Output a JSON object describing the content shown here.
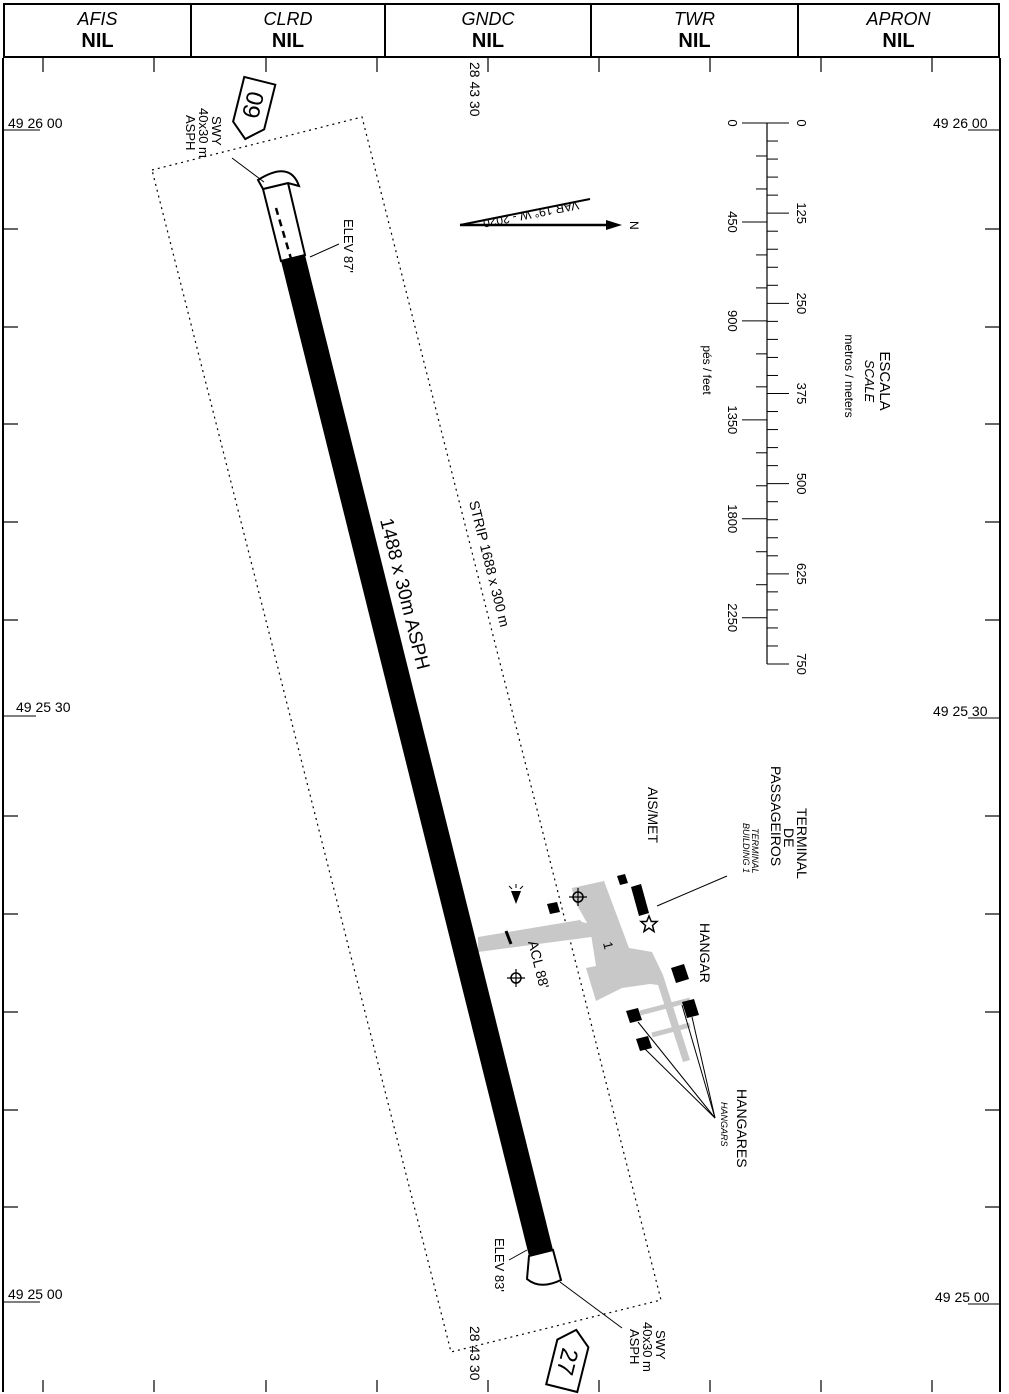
{
  "header": [
    {
      "key": "AFIS",
      "value": "NIL"
    },
    {
      "key": "CLRD",
      "value": "NIL"
    },
    {
      "key": "GNDC",
      "value": "NIL"
    },
    {
      "key": "TWR",
      "value": "NIL"
    },
    {
      "key": "APRON",
      "value": "NIL"
    }
  ],
  "coords": {
    "lat_top": "49 26 00",
    "lat_mid": "49 25 30",
    "lat_bottom": "49 25 00",
    "lon": "28 43 30"
  },
  "runway": {
    "label": "1488 x 30m ASPH",
    "strip": "STRIP 1688 x 300 m",
    "rwy_a": "09",
    "rwy_b": "27",
    "elev_a": "ELEV 87'",
    "elev_b": "ELEV 83'",
    "swy": [
      "SWY",
      "40x30 m",
      "ASPH"
    ]
  },
  "variation": "VAR 19° W - 2020",
  "north": "N",
  "scale": {
    "title": "ESCALA",
    "title_en": "SCALE",
    "units_m": "metros / meters",
    "units_ft": "pés / feet",
    "meters": [
      "0",
      "125",
      "250",
      "375",
      "500",
      "625",
      "750"
    ],
    "feet": [
      "0",
      "450",
      "900",
      "1350",
      "1800",
      "2250"
    ]
  },
  "features": {
    "acl": "ACL 88'",
    "ais": "AIS/MET",
    "terminal": [
      "TERMINAL",
      "DE",
      "PASSAGEIROS"
    ],
    "terminal_en": [
      "TERMINAL",
      "BUILDING 1"
    ],
    "hangar": "HANGAR",
    "hangares": "HANGARES",
    "hangares_en": "HANGARS",
    "apron_num": "1"
  }
}
